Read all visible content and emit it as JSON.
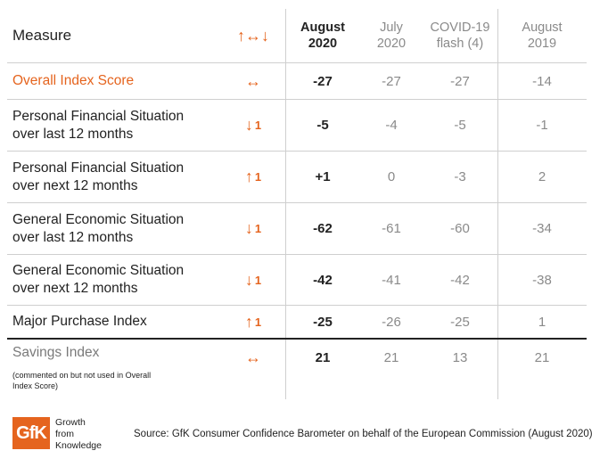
{
  "header": {
    "measure": "Measure",
    "trend_glyph": "↑↔↓",
    "columns": [
      {
        "line1": "August",
        "line2": "2020"
      },
      {
        "line1": "July",
        "line2": "2020"
      },
      {
        "line1": "COVID-19",
        "line2": "flash (4)"
      },
      {
        "line1": "August",
        "line2": "2019"
      }
    ]
  },
  "rows": [
    {
      "measure_line1": "Overall Index Score",
      "measure_line2": "",
      "trend": "↔",
      "trend_num": "",
      "values": [
        "-27",
        "-27",
        "-27",
        "-14"
      ]
    },
    {
      "measure_line1": "Personal Financial Situation",
      "measure_line2": "over last 12 months",
      "trend": "↓",
      "trend_num": "1",
      "values": [
        "-5",
        "-4",
        "-5",
        "-1"
      ]
    },
    {
      "measure_line1": "Personal Financial Situation",
      "measure_line2": "over next 12 months",
      "trend": "↑",
      "trend_num": "1",
      "values": [
        "+1",
        "0",
        "-3",
        "2"
      ]
    },
    {
      "measure_line1": "General Economic Situation",
      "measure_line2": "over last 12 months",
      "trend": "↓",
      "trend_num": "1",
      "values": [
        "-62",
        "-61",
        "-60",
        "-34"
      ]
    },
    {
      "measure_line1": "General Economic Situation",
      "measure_line2": "over next 12 months",
      "trend": "↓",
      "trend_num": "1",
      "values": [
        "-42",
        "-41",
        "-42",
        "-38"
      ]
    },
    {
      "measure_line1": "Major Purchase Index",
      "measure_line2": "",
      "trend": "↑",
      "trend_num": "1",
      "values": [
        "-25",
        "-26",
        "-25",
        "1"
      ]
    }
  ],
  "savings": {
    "label": "Savings Index",
    "note": "(commented on but not used in Overall Index Score)",
    "trend": "↔",
    "values": [
      "21",
      "21",
      "13",
      "21"
    ]
  },
  "footer": {
    "logo": "GfK",
    "tagline_1": "Growth",
    "tagline_2": "from",
    "tagline_3": "Knowledge",
    "source": "Source: GfK Consumer Confidence Barometer on behalf of the European Commission (August 2020)"
  },
  "colors": {
    "accent": "#e5641e",
    "muted": "#8a8a8a",
    "rule": "#cfcfcf"
  }
}
